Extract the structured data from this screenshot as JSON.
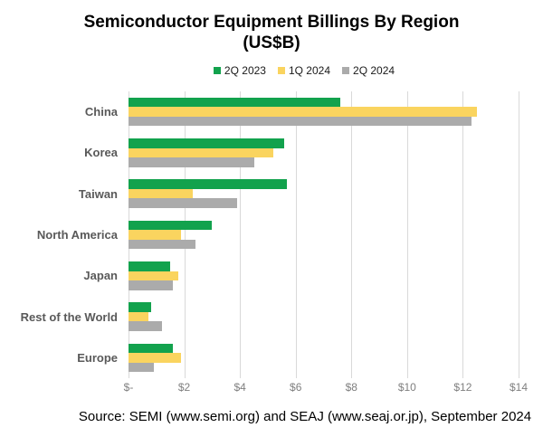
{
  "chart": {
    "title_line1": "Semiconductor Equipment Billings By Region",
    "title_line2": "(US$B)",
    "source": "Source: SEMI (www.semi.org) and SEAJ (www.seaj.or.jp), September 2024"
  },
  "chart_data": {
    "type": "bar",
    "orientation": "horizontal",
    "title": "Semiconductor Equipment Billings By Region (US$B)",
    "categories": [
      "China",
      "Korea",
      "Taiwan",
      "North America",
      "Japan",
      "Rest of the World",
      "Europe"
    ],
    "series": [
      {
        "name": "2Q 2023",
        "color": "#12a24d",
        "values": [
          7.6,
          5.6,
          5.7,
          3.0,
          1.5,
          0.8,
          1.6
        ]
      },
      {
        "name": "1Q 2024",
        "color": "#fad45f",
        "values": [
          12.5,
          5.2,
          2.3,
          1.9,
          1.8,
          0.7,
          1.9
        ]
      },
      {
        "name": "2Q 2024",
        "color": "#ababab",
        "values": [
          12.3,
          4.5,
          3.9,
          2.4,
          1.6,
          1.2,
          0.9
        ]
      }
    ],
    "xlim": [
      0,
      14
    ],
    "x_tick_step": 2,
    "x_ticks": [
      "$-",
      "$2",
      "$4",
      "$6",
      "$8",
      "$10",
      "$12",
      "$14"
    ],
    "grid": true,
    "legend_position": "top",
    "source": "Source: SEMI (www.semi.org) and SEAJ (www.seaj.or.jp), September 2024"
  },
  "colors": {
    "background": "#ffffff",
    "title_text": "#000000",
    "legend_text": "#1a1a1a",
    "category_label": "#595959",
    "tick_label": "#7f7f7f",
    "gridline": "#d9d9d9",
    "series_green": "#12a24d",
    "series_yellow": "#fad45f",
    "series_gray": "#ababab"
  }
}
